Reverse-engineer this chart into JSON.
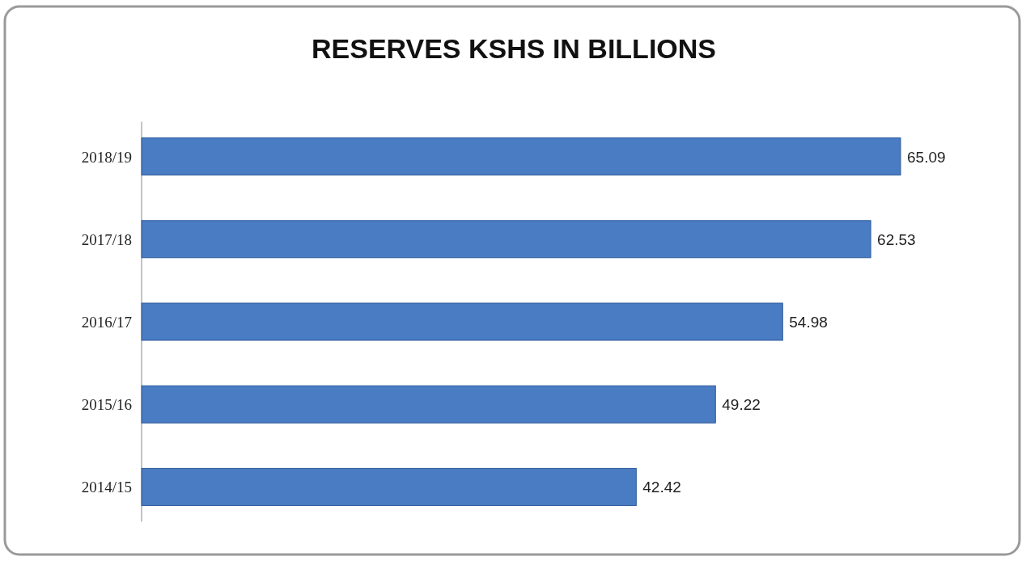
{
  "chart_data": {
    "type": "bar",
    "orientation": "horizontal",
    "title": "RESERVES KSHS IN BILLIONS",
    "categories": [
      "2018/19",
      "2017/18",
      "2016/17",
      "2015/16",
      "2014/15"
    ],
    "values": [
      65.09,
      62.53,
      54.98,
      49.22,
      42.42
    ],
    "color": "#4a7cc4",
    "data_labels": true
  }
}
